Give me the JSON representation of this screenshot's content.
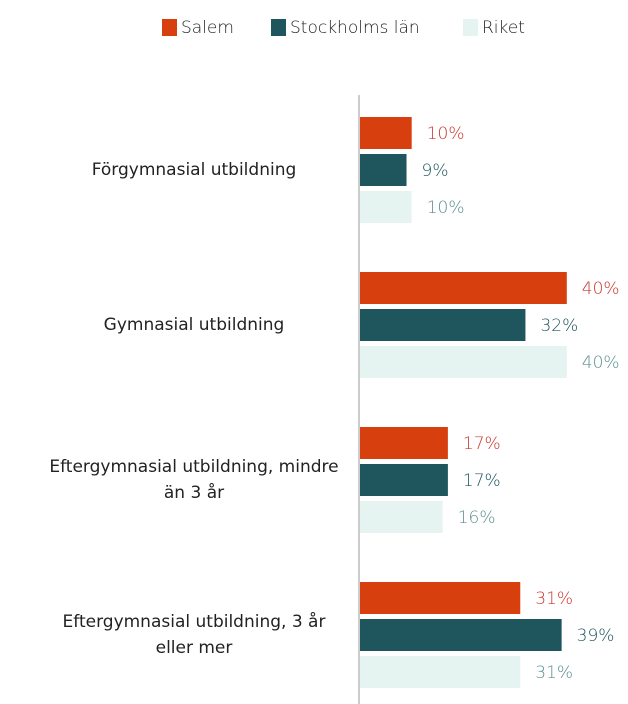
{
  "chart_data": {
    "type": "barh",
    "categories": [
      "Förgymnasial utbildning",
      "Gymnasial utbildning",
      "Eftergymnasial utbildning, mindre än 3 år",
      "Eftergymnasial utbildning, 3 år eller mer"
    ],
    "series": [
      {
        "name": "Salem",
        "color": "#d83f0f",
        "label_color": "#c9372c",
        "values": [
          10,
          40,
          17,
          31
        ],
        "value_labels": [
          "10%",
          "40%",
          "17%",
          "31%"
        ]
      },
      {
        "name": "Stockholms län",
        "color": "#1f555c",
        "label_color": "#1f555c",
        "values": [
          9,
          32,
          17,
          39
        ],
        "value_labels": [
          "9%",
          "32%",
          "17%",
          "39%"
        ]
      },
      {
        "name": "Riket",
        "color": "#e6f4f1",
        "label_color": "#5f8f8f",
        "values": [
          10,
          40,
          16,
          31
        ],
        "value_labels": [
          "10%",
          "40%",
          "16%",
          "31%"
        ]
      }
    ],
    "legend": "top"
  }
}
